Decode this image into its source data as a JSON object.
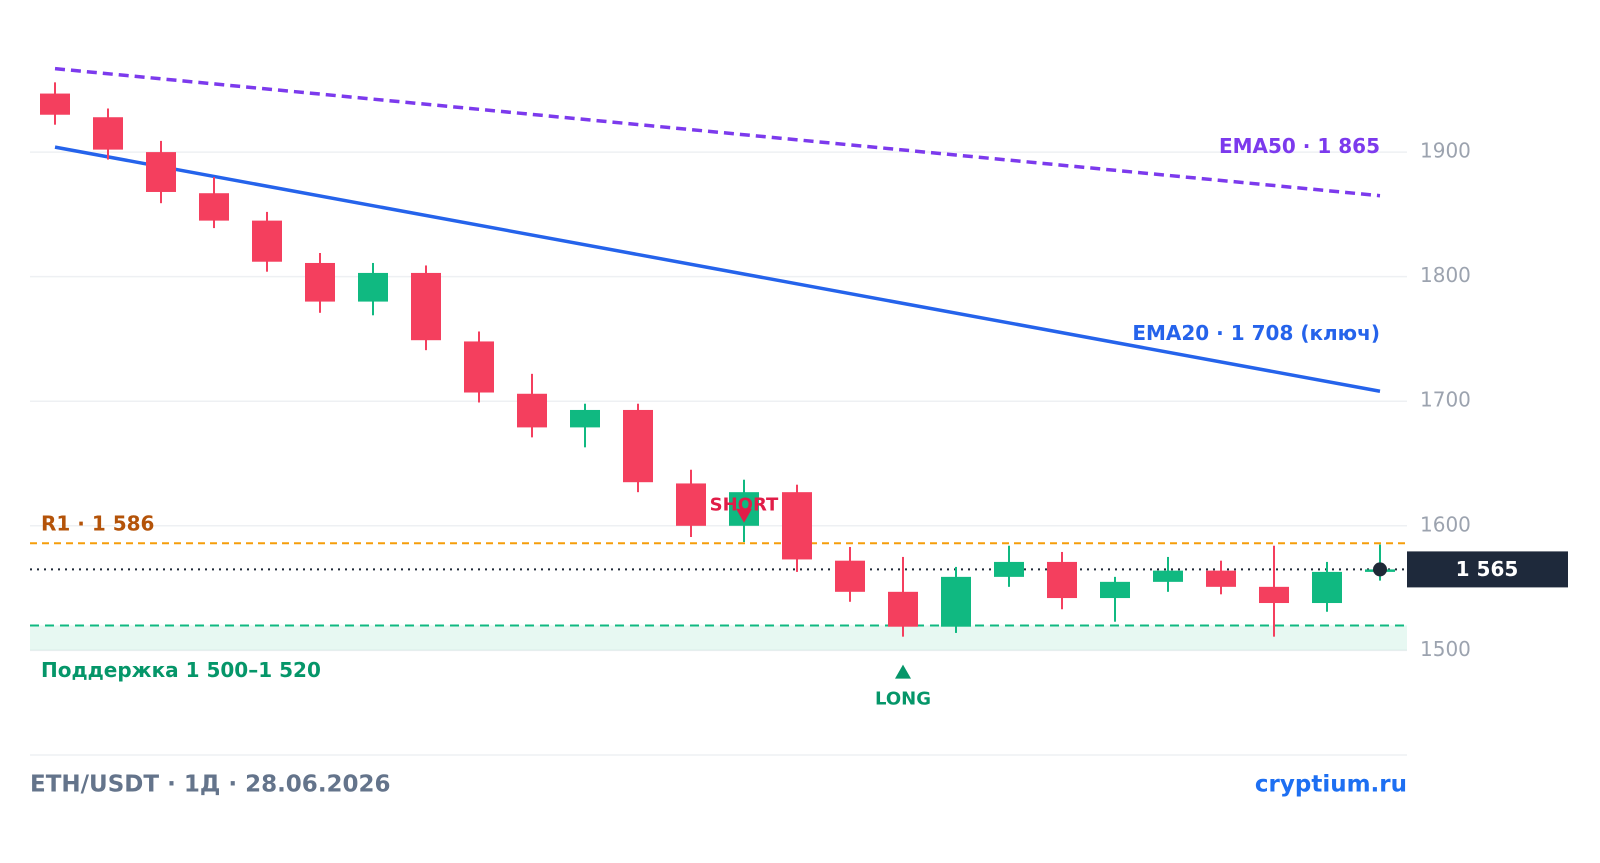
{
  "chart_data": {
    "type": "candlestick",
    "up_color": "#10b981",
    "down_color": "#f43f5e",
    "ylim": [
      1416,
      1990
    ],
    "yticks": [
      1500,
      1600,
      1700,
      1800,
      1900
    ],
    "grid": true,
    "candles": [
      {
        "open": 1947,
        "high": 1956,
        "low": 1922,
        "close": 1930
      },
      {
        "open": 1928,
        "high": 1935,
        "low": 1894,
        "close": 1902
      },
      {
        "open": 1900,
        "high": 1909,
        "low": 1859,
        "close": 1868
      },
      {
        "open": 1867,
        "high": 1880,
        "low": 1839,
        "close": 1845
      },
      {
        "open": 1845,
        "high": 1852,
        "low": 1804,
        "close": 1812
      },
      {
        "open": 1811,
        "high": 1819,
        "low": 1771,
        "close": 1780
      },
      {
        "open": 1780,
        "high": 1811,
        "low": 1769,
        "close": 1803
      },
      {
        "open": 1803,
        "high": 1809,
        "low": 1741,
        "close": 1749
      },
      {
        "open": 1748,
        "high": 1756,
        "low": 1699,
        "close": 1707
      },
      {
        "open": 1706,
        "high": 1722,
        "low": 1671,
        "close": 1679
      },
      {
        "open": 1679,
        "high": 1698,
        "low": 1663,
        "close": 1693
      },
      {
        "open": 1693,
        "high": 1698,
        "low": 1627,
        "close": 1635
      },
      {
        "open": 1634,
        "high": 1645,
        "low": 1591,
        "close": 1600
      },
      {
        "open": 1600,
        "high": 1637,
        "low": 1587,
        "close": 1627,
        "signal": "SHORT"
      },
      {
        "open": 1627,
        "high": 1633,
        "low": 1563,
        "close": 1573
      },
      {
        "open": 1572,
        "high": 1583,
        "low": 1539,
        "close": 1547
      },
      {
        "open": 1547,
        "high": 1575,
        "low": 1511,
        "close": 1519,
        "signal": "LONG"
      },
      {
        "open": 1519,
        "high": 1567,
        "low": 1514,
        "close": 1559
      },
      {
        "open": 1559,
        "high": 1584,
        "low": 1551,
        "close": 1571
      },
      {
        "open": 1571,
        "high": 1579,
        "low": 1533,
        "close": 1542
      },
      {
        "open": 1542,
        "high": 1559,
        "low": 1523,
        "close": 1555
      },
      {
        "open": 1555,
        "high": 1575,
        "low": 1547,
        "close": 1564
      },
      {
        "open": 1564,
        "high": 1572,
        "low": 1545,
        "close": 1551
      },
      {
        "open": 1551,
        "high": 1584,
        "low": 1511,
        "close": 1538
      },
      {
        "open": 1538,
        "high": 1571,
        "low": 1531,
        "close": 1563
      },
      {
        "open": 1563,
        "high": 1585,
        "low": 1556,
        "close": 1565
      }
    ],
    "lines": [
      {
        "name": "EMA50 · 1 865",
        "color": "#7c3aed",
        "dashed": true,
        "values": [
          1967,
          1865
        ]
      },
      {
        "name": "EMA20 · 1 708 (ключ)",
        "color": "#2563eb",
        "dashed": false,
        "values": [
          1904,
          1708
        ]
      }
    ],
    "resistance": {
      "label": "R1 · 1 586",
      "value": 1586,
      "color": "#f59e0b",
      "label_color": "#b45309"
    },
    "support": {
      "label": "Поддержка 1 500–1 520",
      "low": 1500,
      "high": 1520,
      "color": "#10b981",
      "label_color": "#059669"
    },
    "price": {
      "label": "1 565",
      "value": 1565
    },
    "footer": {
      "left": "ETH/USDT · 1Д · 28.06.2026",
      "right": "cryptium.ru"
    }
  }
}
